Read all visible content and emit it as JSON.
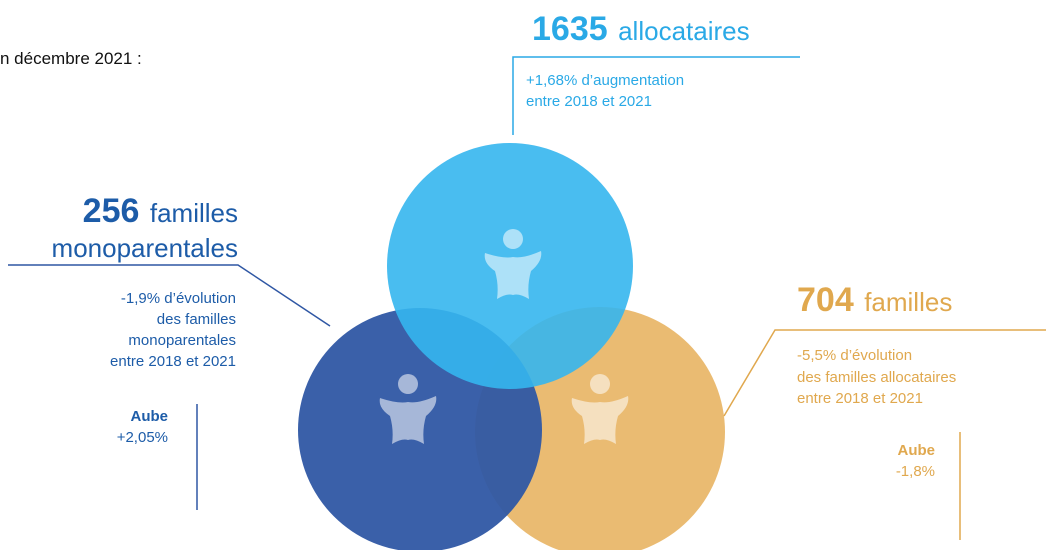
{
  "header": "n décembre 2021 :",
  "allocataires": {
    "value": 1635,
    "label": "allocataires",
    "notes": [
      "+1,68% d’augmentation",
      "entre 2018 et 2021"
    ]
  },
  "monoparentales": {
    "value": 256,
    "label": "familles",
    "label2": "monoparentales",
    "notes": [
      "-1,9% d’évolution",
      "des familles",
      "monoparentales",
      "entre 2018 et 2021"
    ],
    "aube": {
      "label": "Aube",
      "value": "+2,05%"
    }
  },
  "familles": {
    "value": 704,
    "label": "familles",
    "notes": [
      "-5,5% d’évolution",
      "des familles allocataires",
      "entre 2018 et 2021"
    ],
    "aube": {
      "label": "Aube",
      "value": "-1,8%"
    }
  }
}
